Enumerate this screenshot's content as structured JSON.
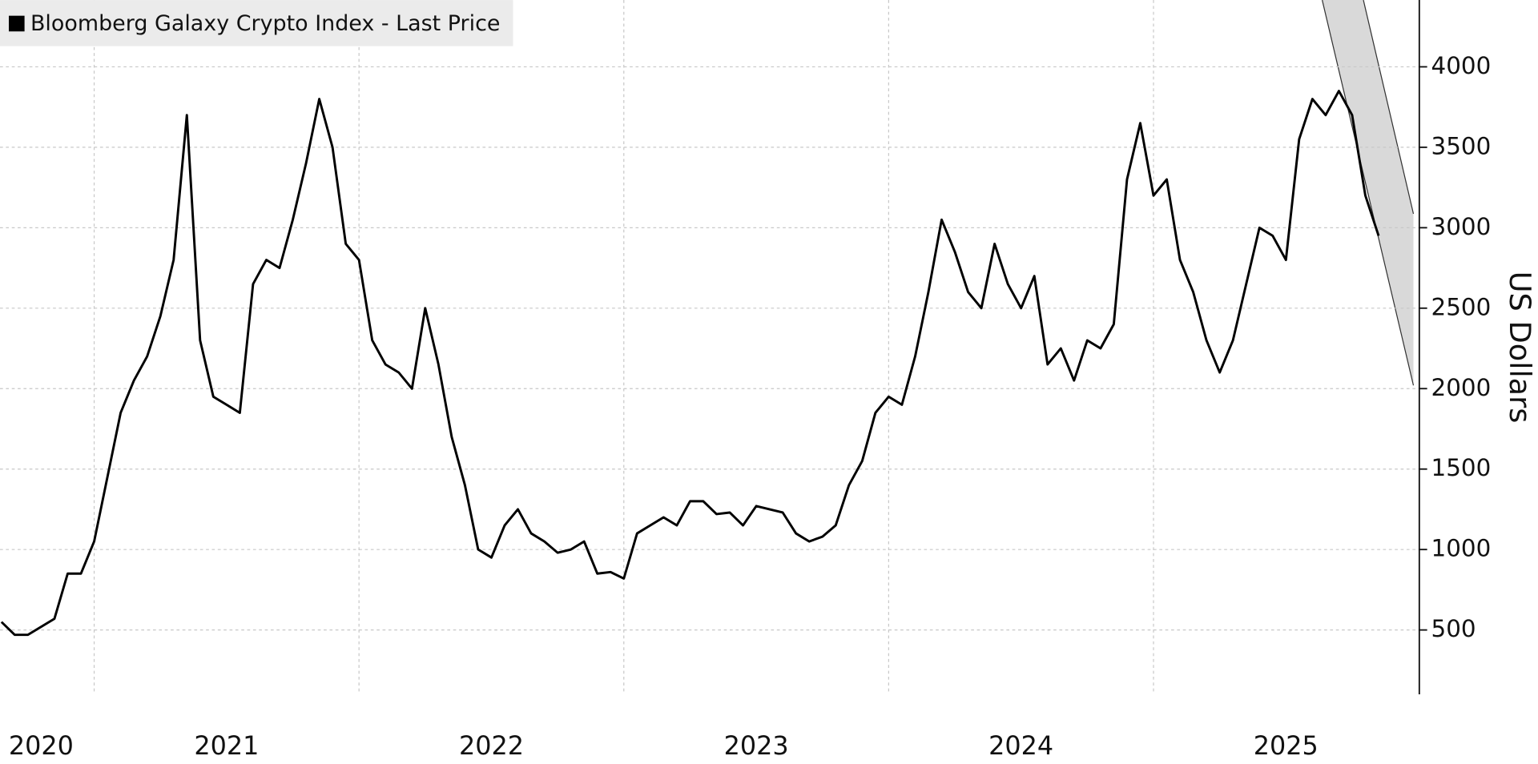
{
  "chart_data": {
    "type": "line",
    "y_axis_label": "US Dollars",
    "categories": [
      null,
      null,
      null,
      "2020",
      null,
      null,
      null,
      null,
      null,
      null,
      null,
      null,
      null,
      null,
      null,
      null,
      null,
      "2021",
      null,
      null,
      null,
      null,
      null,
      null,
      null,
      null,
      null,
      null,
      null,
      null,
      null,
      null,
      null,
      null,
      null,
      null,
      null,
      "2022",
      null,
      null,
      null,
      null,
      null,
      null,
      null,
      null,
      null,
      null,
      null,
      null,
      null,
      null,
      null,
      null,
      null,
      null,
      null,
      "2023",
      null,
      null,
      null,
      null,
      null,
      null,
      null,
      null,
      null,
      null,
      null,
      null,
      null,
      null,
      null,
      null,
      null,
      null,
      null,
      "2024",
      null,
      null,
      null,
      null,
      null,
      null,
      null,
      null,
      null,
      null,
      null,
      null,
      null,
      null,
      null,
      null,
      null,
      null,
      null,
      "2025",
      null,
      null,
      null,
      null,
      null,
      null,
      null
    ],
    "series": [
      {
        "name": "Bloomberg Galaxy Crypto Index - Last Price",
        "color": "#000000",
        "values": [
          550,
          470,
          470,
          520,
          570,
          850,
          850,
          1050,
          1450,
          1850,
          2050,
          2200,
          2450,
          2800,
          3700,
          2300,
          1950,
          1900,
          1850,
          2650,
          2800,
          2750,
          3050,
          3400,
          3800,
          3500,
          2900,
          2800,
          2300,
          2150,
          2100,
          2000,
          2500,
          2150,
          1700,
          1400,
          1000,
          950,
          1150,
          1250,
          1100,
          1050,
          980,
          1000,
          1050,
          850,
          860,
          820,
          1100,
          1150,
          1200,
          1150,
          1300,
          1300,
          1220,
          1230,
          1150,
          1270,
          1250,
          1230,
          1100,
          1050,
          1080,
          1150,
          1400,
          1550,
          1850,
          1950,
          1900,
          2200,
          2600,
          3050,
          2850,
          2600,
          2500,
          2900,
          2650,
          2500,
          2700,
          2150,
          2250,
          2050,
          2300,
          2250,
          2400,
          3300,
          3650,
          3200,
          3300,
          2800,
          2600,
          2300,
          2100,
          2300,
          2650,
          3000,
          2950,
          2800,
          3550,
          3800,
          3700,
          3850,
          3700,
          3200,
          2950
        ]
      }
    ],
    "ylim": [
      100,
      4415
    ],
    "yticks": [
      500,
      1000,
      1500,
      2000,
      2500,
      3000,
      3500,
      4000
    ],
    "grid": true,
    "legend": "top-left"
  }
}
